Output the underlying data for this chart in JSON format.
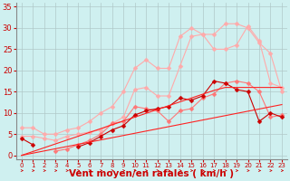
{
  "xlabel": "Vent moyen/en rafales ( km/h )",
  "background_color": "#cff0f0",
  "grid_color": "#b0c8c8",
  "x_values": [
    0,
    1,
    2,
    3,
    4,
    5,
    6,
    7,
    8,
    9,
    10,
    11,
    12,
    13,
    14,
    15,
    16,
    17,
    18,
    19,
    20,
    21,
    22,
    23
  ],
  "ylim": [
    -1,
    36
  ],
  "yticks": [
    0,
    5,
    10,
    15,
    20,
    25,
    30,
    35
  ],
  "series": [
    {
      "color": "#ffaaaa",
      "marker": "D",
      "markersize": 2.5,
      "linewidth": 0.8,
      "y": [
        6.5,
        6.5,
        5.0,
        5.0,
        6.0,
        6.5,
        8.0,
        10.0,
        11.5,
        15.0,
        20.5,
        22.5,
        20.5,
        20.5,
        28.0,
        30.0,
        28.5,
        28.5,
        31.0,
        31.0,
        30.0,
        26.5,
        24.0,
        15.0
      ]
    },
    {
      "color": "#ffaaaa",
      "marker": "D",
      "markersize": 2.5,
      "linewidth": 0.8,
      "y": [
        4.5,
        4.5,
        4.0,
        3.5,
        4.5,
        5.0,
        5.5,
        6.0,
        7.5,
        9.0,
        15.5,
        16.0,
        14.0,
        14.0,
        21.0,
        28.0,
        28.5,
        25.0,
        25.0,
        26.0,
        30.5,
        27.0,
        17.0,
        16.0
      ]
    },
    {
      "color": "#ff7777",
      "marker": "D",
      "markersize": 2.5,
      "linewidth": 0.8,
      "y": [
        null,
        null,
        null,
        1.0,
        1.5,
        2.5,
        3.5,
        5.0,
        7.5,
        8.0,
        11.5,
        11.0,
        10.5,
        8.0,
        10.5,
        11.0,
        13.5,
        14.5,
        17.0,
        17.5,
        17.0,
        15.0,
        9.0,
        9.5
      ]
    },
    {
      "color": "#cc0000",
      "marker": "D",
      "markersize": 2.5,
      "linewidth": 0.8,
      "y": [
        4.0,
        2.5,
        null,
        null,
        null,
        2.0,
        3.0,
        4.5,
        6.0,
        7.0,
        9.5,
        10.5,
        11.0,
        11.5,
        13.5,
        13.0,
        14.0,
        17.5,
        17.0,
        15.5,
        15.0,
        8.0,
        10.0,
        9.0
      ]
    },
    {
      "color": "#ff2222",
      "marker": null,
      "markersize": 0,
      "linewidth": 0.8,
      "y": [
        0.0,
        0.52,
        1.04,
        1.56,
        2.08,
        2.6,
        3.12,
        3.64,
        4.16,
        4.68,
        5.2,
        5.72,
        6.24,
        6.76,
        7.28,
        7.8,
        8.32,
        8.84,
        9.36,
        9.88,
        10.4,
        10.92,
        11.44,
        11.96
      ]
    },
    {
      "color": "#ff2222",
      "marker": null,
      "markersize": 0,
      "linewidth": 0.8,
      "y": [
        0.0,
        0.9,
        1.8,
        2.7,
        3.6,
        4.5,
        5.4,
        6.3,
        7.2,
        8.1,
        9.0,
        9.9,
        10.8,
        11.7,
        12.6,
        13.5,
        14.4,
        15.3,
        16.0,
        16.0,
        16.0,
        16.0,
        16.0,
        16.0
      ]
    }
  ],
  "arrow_color": "#cc0000",
  "xlabel_color": "#cc0000",
  "xlabel_fontsize": 7.5,
  "ytick_color": "#cc0000",
  "xtick_color": "#cc0000",
  "xtick_fontsize": 5.0,
  "ytick_fontsize": 6.0
}
